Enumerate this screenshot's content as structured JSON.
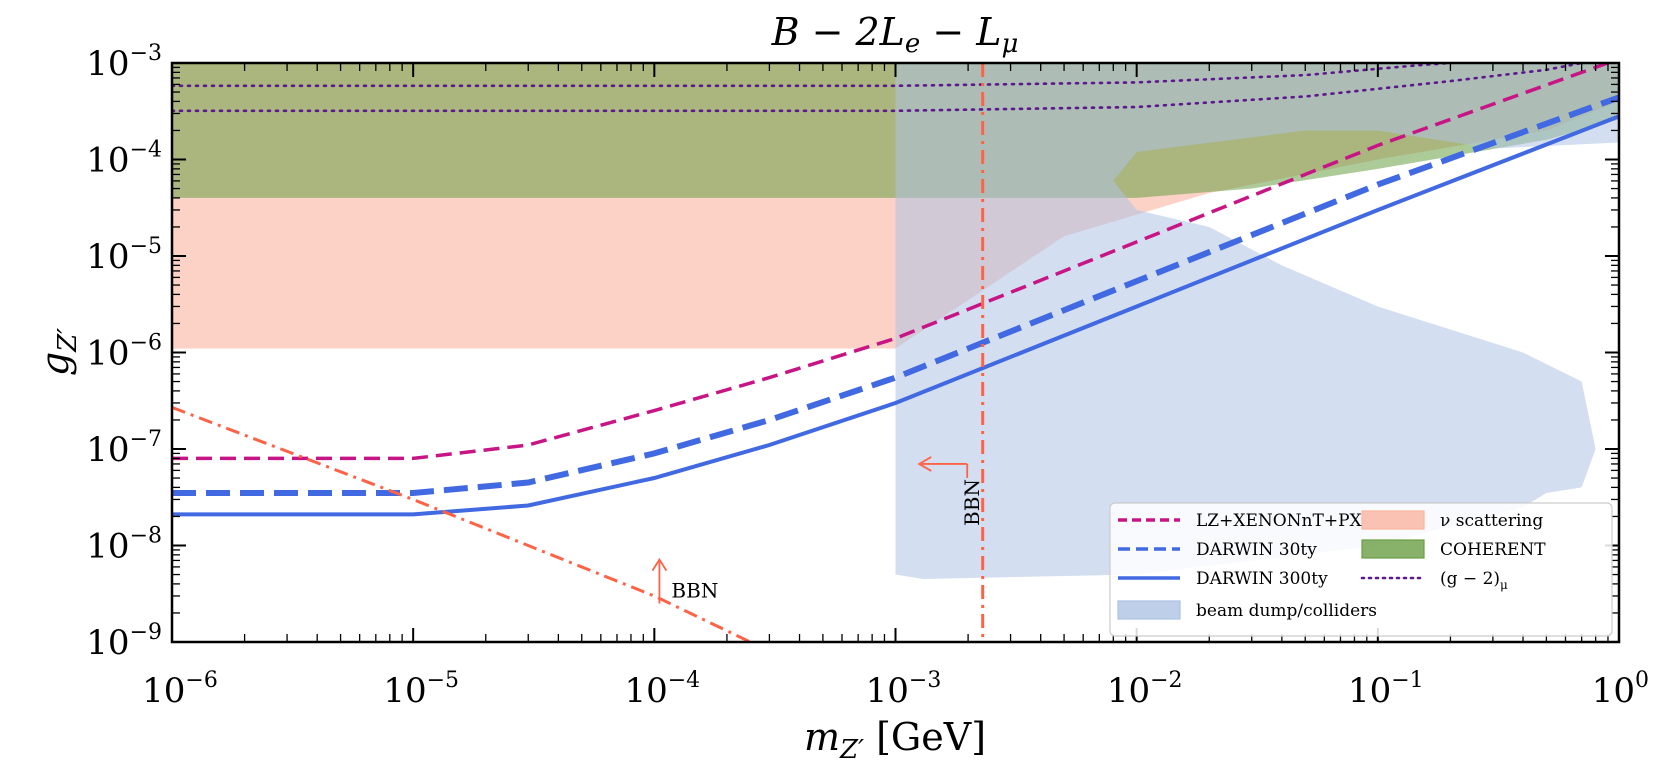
{
  "chart_data": {
    "type": "line",
    "title": "B − 2L",
    "title_parts": {
      "base": "B − 2L",
      "sub_e": "e",
      "mid": " − L",
      "sub_mu": "μ"
    },
    "xlabel": {
      "main": "m",
      "sub": "Z′",
      "unit": " [GeV]"
    },
    "ylabel": {
      "main": "g",
      "sub": "Z′"
    },
    "x_scale": "log",
    "y_scale": "log",
    "xlim": [
      1e-06,
      1
    ],
    "ylim": [
      1e-09,
      0.001
    ],
    "x_ticks": [
      {
        "exp": "−6",
        "value": 1e-06,
        "base": "10"
      },
      {
        "exp": "−5",
        "value": 1e-05,
        "base": "10"
      },
      {
        "exp": "−4",
        "value": 0.0001,
        "base": "10"
      },
      {
        "exp": "−3",
        "value": 0.001,
        "base": "10"
      },
      {
        "exp": "−2",
        "value": 0.01,
        "base": "10"
      },
      {
        "exp": "−1",
        "value": 0.1,
        "base": "10"
      },
      {
        "exp": "0",
        "value": 1,
        "base": "10"
      }
    ],
    "y_ticks": [
      {
        "exp": "−9",
        "value": 1e-09,
        "base": "10"
      },
      {
        "exp": "−8",
        "value": 1e-08,
        "base": "10"
      },
      {
        "exp": "−7",
        "value": 1e-07,
        "base": "10"
      },
      {
        "exp": "−6",
        "value": 1e-06,
        "base": "10"
      },
      {
        "exp": "−5",
        "value": 1e-05,
        "base": "10"
      },
      {
        "exp": "−4",
        "value": 0.0001,
        "base": "10"
      },
      {
        "exp": "−3",
        "value": 0.001,
        "base": "10"
      }
    ],
    "series": [
      {
        "name": "LZ+XENONnT+PX",
        "style": "dashed",
        "color": "#c71585",
        "points": [
          [
            1e-06,
            8e-08
          ],
          [
            1e-05,
            8e-08
          ],
          [
            3e-05,
            1.1e-07
          ],
          [
            0.0001,
            2.5e-07
          ],
          [
            0.0003,
            5.5e-07
          ],
          [
            0.001,
            1.4e-06
          ],
          [
            0.01,
            1.4e-05
          ],
          [
            0.1,
            0.00014
          ],
          [
            1,
            0.0011
          ]
        ]
      },
      {
        "name": "DARWIN 30ty",
        "style": "dashed-thick",
        "color": "#4169e1",
        "points": [
          [
            1e-06,
            3.5e-08
          ],
          [
            1e-05,
            3.5e-08
          ],
          [
            3e-05,
            4.5e-08
          ],
          [
            0.0001,
            9e-08
          ],
          [
            0.0003,
            2e-07
          ],
          [
            0.001,
            5.5e-07
          ],
          [
            0.01,
            5.5e-06
          ],
          [
            0.1,
            5.5e-05
          ],
          [
            1,
            0.00044
          ]
        ]
      },
      {
        "name": "DARWIN 300ty",
        "style": "solid",
        "color": "#4169e1",
        "points": [
          [
            1e-06,
            2.1e-08
          ],
          [
            1e-05,
            2.1e-08
          ],
          [
            3e-05,
            2.6e-08
          ],
          [
            0.0001,
            5e-08
          ],
          [
            0.0003,
            1.1e-07
          ],
          [
            0.001,
            3e-07
          ],
          [
            0.01,
            3e-06
          ],
          [
            0.1,
            3e-05
          ],
          [
            1,
            0.00028
          ]
        ]
      },
      {
        "name": "(g − 2)μ upper",
        "style": "dotted",
        "color": "#5b1a8a",
        "points": [
          [
            1e-06,
            0.00058
          ],
          [
            0.001,
            0.00058
          ],
          [
            0.01,
            0.00063
          ],
          [
            0.05,
            0.00075
          ],
          [
            0.15,
            0.00095
          ],
          [
            0.2,
            0.001
          ]
        ]
      },
      {
        "name": "(g − 2)μ lower",
        "style": "dotted",
        "color": "#5b1a8a",
        "points": [
          [
            1e-06,
            0.00032
          ],
          [
            0.001,
            0.00032
          ],
          [
            0.01,
            0.00035
          ],
          [
            0.05,
            0.00045
          ],
          [
            0.2,
            0.00065
          ],
          [
            0.5,
            0.00085
          ],
          [
            0.7,
            0.001
          ]
        ]
      },
      {
        "name": "BBN diagonal",
        "style": "dashdot",
        "color": "#ff6347",
        "points": [
          [
            1e-06,
            2.7e-07
          ],
          [
            1e-05,
            3e-08
          ],
          [
            0.0001,
            3e-09
          ],
          [
            0.00025,
            1e-09
          ]
        ]
      },
      {
        "name": "BBN vertical",
        "style": "dashdot",
        "color": "#ff6347",
        "points": [
          [
            0.0023,
            0.001
          ],
          [
            0.0023,
            1e-09
          ]
        ]
      }
    ],
    "regions": [
      {
        "name": "ν scattering",
        "color": "#f9b49f",
        "opacity": 0.6,
        "points": [
          [
            1e-06,
            1.1e-06
          ],
          [
            0.001,
            1.1e-06
          ],
          [
            0.005,
            1.6e-05
          ],
          [
            0.02,
            4.5e-05
          ],
          [
            0.1,
            0.0001
          ],
          [
            0.5,
            0.0002
          ],
          [
            1,
            0.0004
          ],
          [
            1,
            0.001
          ],
          [
            1e-06,
            0.001
          ]
        ]
      },
      {
        "name": "COHERENT",
        "color": "#6a9e45",
        "opacity": 0.55,
        "points": [
          [
            1e-06,
            4e-05
          ],
          [
            0.001,
            4e-05
          ],
          [
            0.01,
            4e-05
          ],
          [
            0.03,
            5e-05
          ],
          [
            0.1,
            8e-05
          ],
          [
            0.5,
            0.00016
          ],
          [
            1,
            0.00026
          ],
          [
            1,
            0.001
          ],
          [
            1e-06,
            0.001
          ]
        ]
      },
      {
        "name": "beam dump/colliders",
        "color": "#aec3e3",
        "opacity": 0.55,
        "points": [
          [
            0.001,
            0.001
          ],
          [
            0.001,
            5e-09
          ],
          [
            0.0013,
            4.5e-09
          ],
          [
            0.01,
            5e-09
          ],
          [
            0.1,
            1e-08
          ],
          [
            0.4,
            2.5e-08
          ],
          [
            0.5,
            3.5e-08
          ],
          [
            0.7,
            4e-08
          ],
          [
            0.8,
            1e-07
          ],
          [
            0.7,
            5e-07
          ],
          [
            0.4,
            1e-06
          ],
          [
            0.1,
            3e-06
          ],
          [
            0.04,
            8e-06
          ],
          [
            0.02,
            2e-05
          ],
          [
            0.01,
            3e-05
          ],
          [
            0.008,
            6e-05
          ],
          [
            0.01,
            0.00012
          ],
          [
            0.05,
            0.0002
          ],
          [
            0.1,
            0.0002
          ],
          [
            0.3,
            0.00013
          ],
          [
            1,
            0.00015
          ],
          [
            1,
            0.001
          ]
        ]
      }
    ],
    "annotations": [
      {
        "text": "BBN",
        "x": 0.00012,
        "y": 2.5e-09,
        "arrow": "up",
        "color": "#ff6347"
      },
      {
        "text": "BBN",
        "x": 0.0021,
        "y": 7e-08,
        "arrow": "left",
        "rotated": true,
        "color": "#ff6347"
      }
    ],
    "legend": {
      "position": "lower-right",
      "entries": [
        {
          "label": "LZ+XENONnT+PX",
          "kind": "line",
          "style": "dashed",
          "color": "#c71585"
        },
        {
          "label": "DARWIN 30ty",
          "kind": "line",
          "style": "dashed-thick",
          "color": "#4169e1"
        },
        {
          "label": "DARWIN 300ty",
          "kind": "line",
          "style": "solid",
          "color": "#4169e1"
        },
        {
          "label": "beam dump/colliders",
          "kind": "patch",
          "color": "#aec3e3"
        },
        {
          "label": "ν scattering",
          "kind": "patch",
          "color": "#f9b49f"
        },
        {
          "label": "COHERENT",
          "kind": "patch",
          "color": "#6a9e45"
        },
        {
          "label": "(g − 2)",
          "sub": "μ",
          "kind": "line",
          "style": "dotted",
          "color": "#5b1a8a"
        }
      ]
    }
  }
}
